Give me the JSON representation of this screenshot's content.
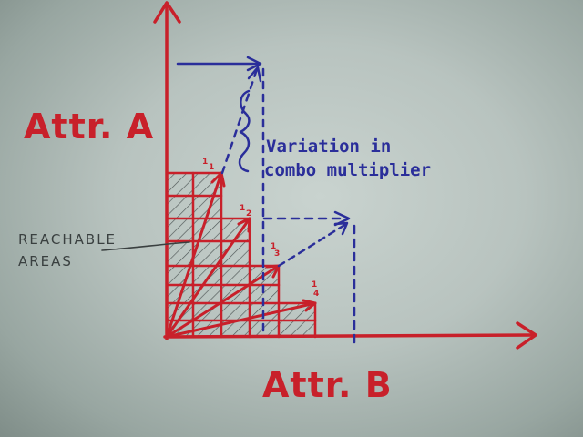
{
  "axes": {
    "y_label": "Attr. A",
    "x_label": "Attr. B"
  },
  "annotations": {
    "variation_line1": "Variation in",
    "variation_line2": "combo multiplier",
    "reachable_line1": "REACHABLE",
    "reachable_line2": "AREAS"
  },
  "fractions": [
    {
      "num": "1",
      "den": "1"
    },
    {
      "num": "1",
      "den": "2"
    },
    {
      "num": "1",
      "den": "3"
    },
    {
      "num": "1",
      "den": "4"
    }
  ],
  "colors": {
    "red": "#c8202a",
    "blue": "#2a2e9a",
    "ink": "#3a4040"
  }
}
